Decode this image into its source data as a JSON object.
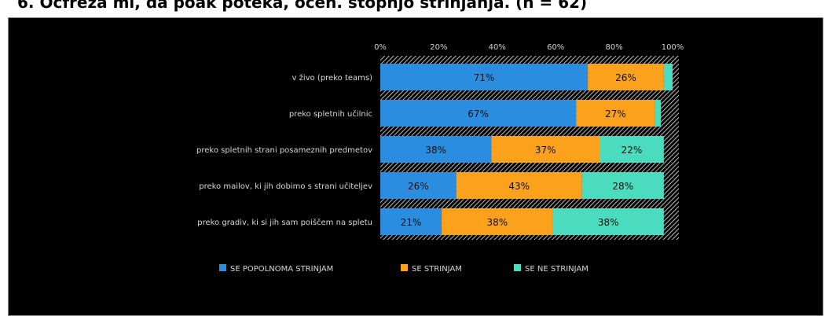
{
  "page": {
    "heading": "6.   Ocfreza mi, da poak poteka, ocen. stopnjo strinjanja. (n = 62)"
  },
  "chart_data": {
    "type": "bar",
    "orientation": "horizontal",
    "stacked": true,
    "title": "",
    "xlabel": "",
    "ylabel": "",
    "xlim": [
      0,
      100
    ],
    "ticks": [
      "0%",
      "20%",
      "40%",
      "60%",
      "80%",
      "100%"
    ],
    "grid": false,
    "legend_position": "bottom",
    "categories": [
      "v živo (preko teams)",
      "preko spletnih učilnic",
      "preko spletnih strani posameznih predmetov",
      "preko mailov, ki jih dobimo s strani učiteljev",
      "preko gradiv, ki si jih sam poiščem na spletu"
    ],
    "series": [
      {
        "name": "SE POPOLNOMA STRINJAM",
        "color": "#2b8de0",
        "values": [
          71,
          67,
          38,
          26,
          21
        ]
      },
      {
        "name": "SE STRINJAM",
        "color": "#fca11b",
        "values": [
          26,
          27,
          37,
          43,
          38
        ]
      },
      {
        "name": "SE NE STRINJAM",
        "color": "#4bdcc0",
        "values": [
          3,
          2,
          22,
          28,
          38
        ]
      }
    ],
    "hidden_value_labels": [
      [
        false,
        false,
        false
      ],
      [
        false,
        false,
        true
      ],
      [
        false,
        false,
        false
      ],
      [
        false,
        false,
        false
      ],
      [
        false,
        false,
        false
      ]
    ],
    "value_labels": [
      [
        "71%",
        "26%",
        ""
      ],
      [
        "67%",
        "27%",
        ""
      ],
      [
        "38%",
        "37%",
        "22%"
      ],
      [
        "26%",
        "43%",
        "28%"
      ],
      [
        "21%",
        "38%",
        "38%"
      ]
    ]
  }
}
